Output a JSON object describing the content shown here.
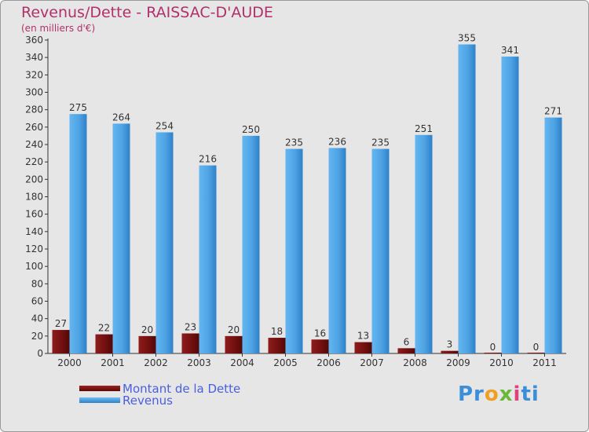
{
  "title": "Revenus/Dette - RAISSAC-D'AUDE",
  "subtitle": "(en milliers d'€)",
  "logo": {
    "text": "Proxiti"
  },
  "colors": {
    "dette": "#7a1212",
    "revenus": "#52a8e8",
    "title": "#b0306b",
    "legend_text": "#4a5fe0"
  },
  "chart_data": {
    "type": "bar",
    "title": "Revenus/Dette - RAISSAC-D'AUDE",
    "ylabel": "(en milliers d'€)",
    "xlabel": "",
    "categories": [
      "2000",
      "2001",
      "2002",
      "2003",
      "2004",
      "2005",
      "2006",
      "2007",
      "2008",
      "2009",
      "2010",
      "2011"
    ],
    "series": [
      {
        "name": "Montant de la Dette",
        "values": [
          27,
          22,
          20,
          23,
          20,
          18,
          16,
          13,
          6,
          3,
          0,
          0
        ]
      },
      {
        "name": "Revenus",
        "values": [
          275,
          264,
          254,
          216,
          250,
          235,
          236,
          235,
          251,
          355,
          341,
          271
        ]
      }
    ],
    "ylim": [
      0,
      360
    ],
    "yticks": [
      0,
      20,
      40,
      60,
      80,
      100,
      120,
      140,
      160,
      180,
      200,
      220,
      240,
      260,
      280,
      300,
      320,
      340,
      360
    ],
    "grid": false,
    "legend": "bottom-left"
  }
}
